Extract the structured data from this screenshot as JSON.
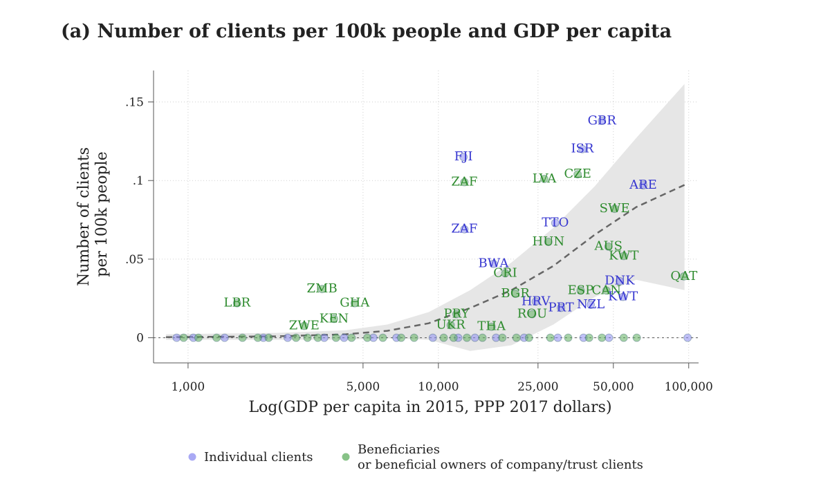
{
  "chart_data": {
    "type": "scatter",
    "title": "(a) Number of clients per 100k people and GDP per capita",
    "x_label": "Log(GDP per capita in 2015, PPP 2017 dollars)",
    "y_label": "Number of clients per 100k people",
    "x_scale": "log",
    "grid": true,
    "xlim": [
      728,
      109500
    ],
    "ylim": [
      -0.016,
      0.17
    ],
    "xticks": [
      {
        "value": 1000,
        "label": "1,000"
      },
      {
        "value": 5000,
        "label": "5,000"
      },
      {
        "value": 10000,
        "label": "10,000"
      },
      {
        "value": 25000,
        "label": "25,000"
      },
      {
        "value": 50000,
        "label": "50,000"
      },
      {
        "value": 100000,
        "label": "100,000"
      }
    ],
    "yticks": [
      {
        "value": 0,
        "label": "0"
      },
      {
        "value": 0.05,
        "label": ".05"
      },
      {
        "value": 0.1,
        "label": ".1"
      },
      {
        "value": 0.15,
        "label": ".15"
      }
    ],
    "series": [
      {
        "name": "Individual clients",
        "color": "#8c8cf0",
        "label_color": "#3636d0",
        "x": [
          45000,
          37600,
          12600,
          65800,
          12700,
          29300,
          16600,
          53000,
          54600,
          24500,
          30900,
          40600,
          900,
          1050,
          1400,
          2000,
          2500,
          3500,
          4200,
          5500,
          6800,
          9500,
          12000,
          14000,
          17000,
          22000,
          30000,
          38000,
          48000,
          99000
        ],
        "values": [
          0.138,
          0.12,
          0.115,
          0.097,
          0.069,
          0.073,
          0.047,
          0.036,
          0.026,
          0.023,
          0.019,
          0.021,
          0,
          0,
          0,
          0,
          0,
          0,
          0,
          0,
          0,
          0,
          0,
          0,
          0,
          0,
          0,
          0,
          0,
          0
        ],
        "labels": [
          "GBR",
          "ISR",
          "FJI",
          "ARE",
          "ZAF",
          "TTO",
          "BWA",
          "DNK",
          "KWT",
          "HRV",
          "PRT",
          "NZL",
          null,
          null,
          null,
          null,
          null,
          null,
          null,
          null,
          null,
          null,
          null,
          null,
          null,
          null,
          null,
          null,
          null,
          null
        ]
      },
      {
        "name": "Beneficiaries or beneficial owners of company/trust clients",
        "color": "#5fae5f",
        "label_color": "#2e8b2e",
        "x": [
          12700,
          26500,
          36000,
          50600,
          27500,
          47800,
          55000,
          95700,
          18500,
          37000,
          46900,
          3430,
          1570,
          4630,
          3830,
          2910,
          11800,
          11200,
          16300,
          20300,
          23700,
          960,
          1100,
          1300,
          1650,
          1900,
          2100,
          2700,
          3000,
          3300,
          3900,
          4500,
          5200,
          6000,
          7100,
          8000,
          10500,
          11500,
          13000,
          15000,
          18000,
          20500,
          23000,
          28000,
          33000,
          40000,
          45000,
          55000,
          62000
        ],
        "values": [
          0.099,
          0.101,
          0.104,
          0.082,
          0.061,
          0.058,
          0.052,
          0.039,
          0.041,
          0.03,
          0.03,
          0.031,
          0.022,
          0.022,
          0.012,
          0.0075,
          0.015,
          0.008,
          0.007,
          0.028,
          0.015,
          0,
          0,
          0,
          0,
          0,
          0,
          0,
          0,
          0,
          0,
          0,
          0,
          0,
          0,
          0,
          0,
          0,
          0,
          0,
          0,
          0,
          0,
          0,
          0,
          0,
          0,
          0,
          0
        ],
        "labels": [
          "ZAF",
          "LVA",
          "CZE",
          "SWE",
          "HUN",
          "AUS",
          "KWT",
          "QAT",
          "CRI",
          "ESP",
          "CAN",
          "ZMB",
          "LBR",
          "GHA",
          "KEN",
          "ZWE",
          "PRY",
          "UKR",
          "THA",
          "BGR",
          "ROU",
          null,
          null,
          null,
          null,
          null,
          null,
          null,
          null,
          null,
          null,
          null,
          null,
          null,
          null,
          null,
          null,
          null,
          null,
          null,
          null,
          null,
          null,
          null,
          null,
          null,
          null,
          null,
          null
        ]
      }
    ],
    "fit": {
      "color": "#666666",
      "band_color": "#e6e6e6",
      "x": [
        816,
        2260,
        4270,
        6250,
        9150,
        13400,
        19600,
        28800,
        42100,
        61700,
        96200
      ],
      "values": [
        0.0004,
        0.0009,
        0.0022,
        0.0044,
        0.0092,
        0.0189,
        0.0303,
        0.0457,
        0.0655,
        0.0831,
        0.0972
      ],
      "lower": [
        -0.0013,
        -0.0013,
        -0.0013,
        -0.0004,
        -0.0013,
        -0.0084,
        -0.0048,
        0.0084,
        0.0259,
        0.0369,
        0.0303
      ],
      "upper": [
        0.0022,
        0.0031,
        0.0048,
        0.0084,
        0.0163,
        0.0303,
        0.0479,
        0.0699,
        0.0963,
        0.1271,
        0.1614
      ]
    }
  }
}
